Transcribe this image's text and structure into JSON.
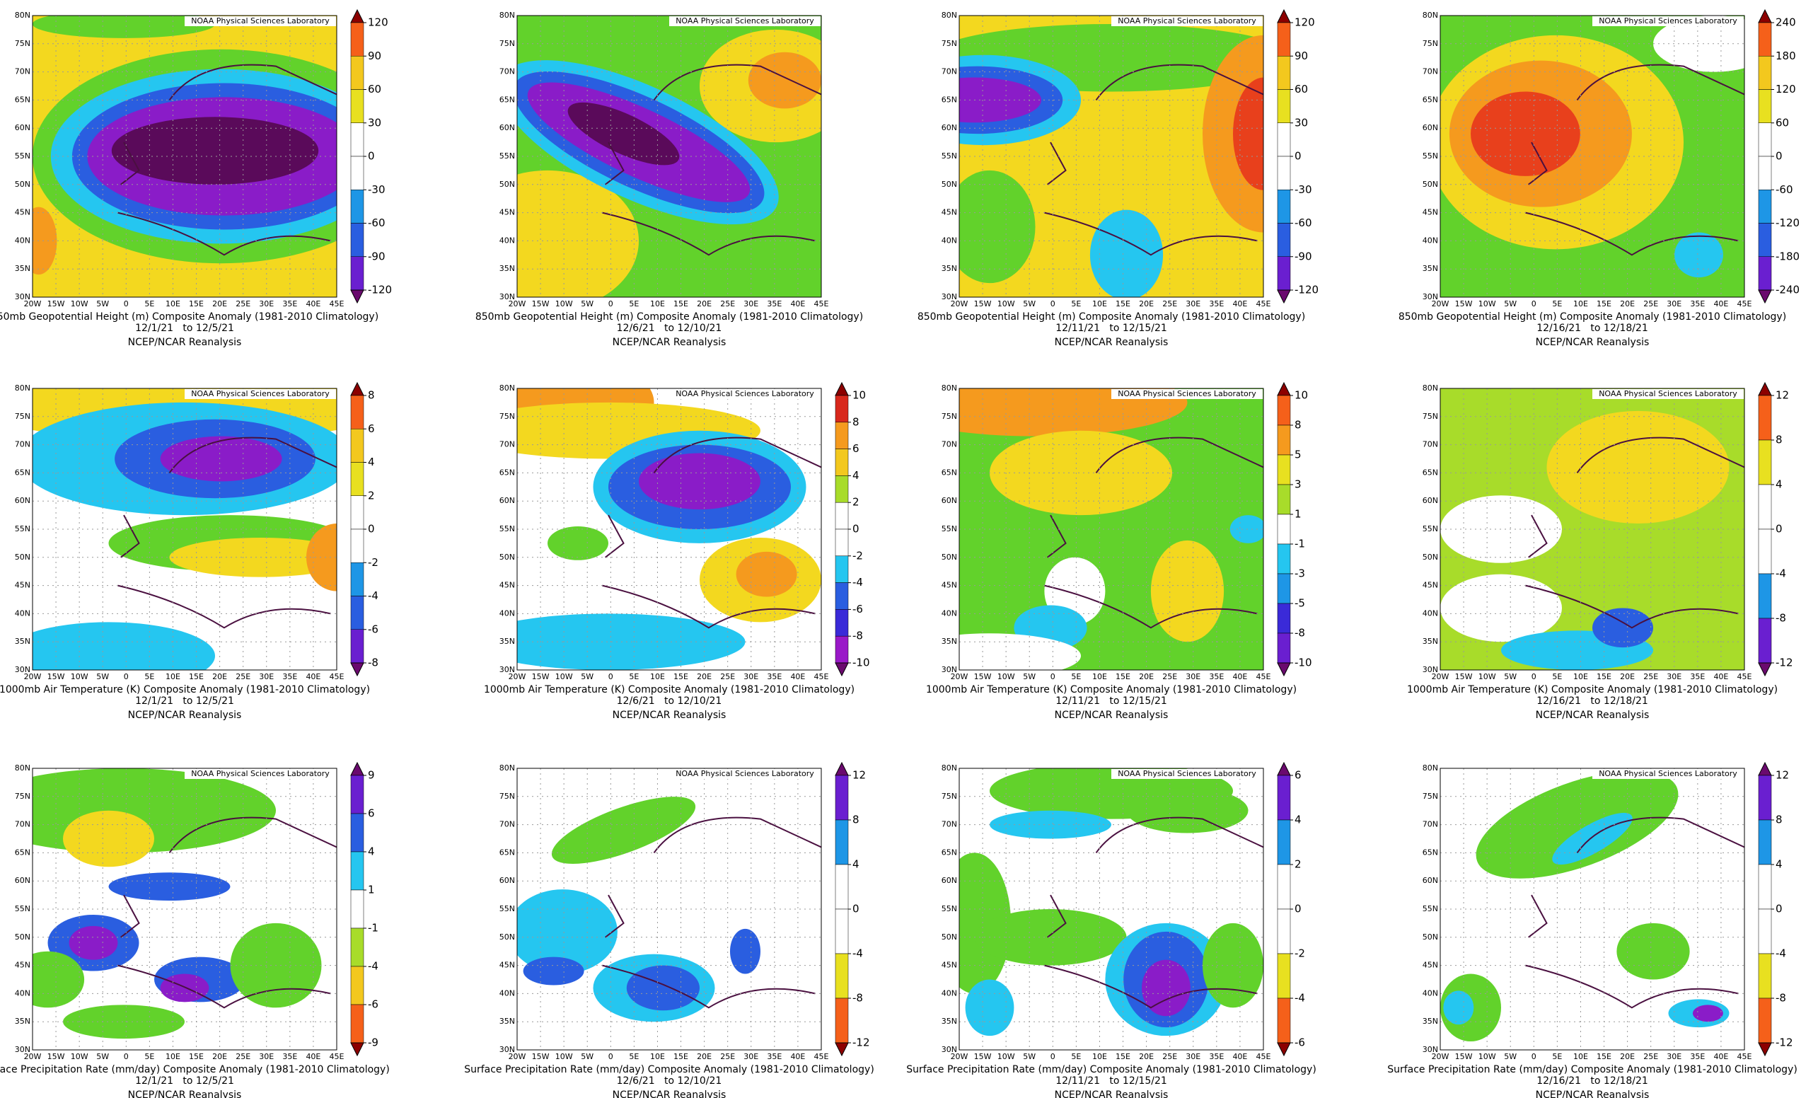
{
  "header_credit": "NOAA Physical Sciences Laboratory",
  "source": "NCEP/NCAR Reanalysis",
  "lon_labels": [
    "20W",
    "15W",
    "10W",
    "5W",
    "0",
    "5E",
    "10E",
    "15E",
    "20E",
    "25E",
    "30E",
    "35E",
    "40E",
    "45E"
  ],
  "lat_labels": [
    "80N",
    "75N",
    "70N",
    "65N",
    "60N",
    "55N",
    "50N",
    "45N",
    "40N",
    "35N",
    "30N"
  ],
  "rows": [
    {
      "caption": "850mb Geopotential Height (m) Composite Anomaly (1981-2010 Climatology)",
      "panels": [
        {
          "dates": "12/1/21   to 12/5/21",
          "colorbar": [
            120,
            90,
            60,
            30,
            0,
            -30,
            -60,
            -90,
            -120
          ]
        },
        {
          "dates": "12/6/21   to 12/10/21"
        },
        {
          "dates": "12/11/21   to 12/15/21",
          "colorbar": [
            120,
            90,
            60,
            30,
            0,
            -30,
            -60,
            -90,
            -120
          ]
        },
        {
          "dates": "12/16/21   to 12/18/21",
          "colorbar": [
            240,
            180,
            120,
            60,
            0,
            -60,
            -120,
            -180,
            -240
          ]
        }
      ]
    },
    {
      "caption": "1000mb Air Temperature (K) Composite Anomaly (1981-2010 Climatology)",
      "panels": [
        {
          "dates": "12/1/21   to 12/5/21",
          "colorbar": [
            8,
            6,
            4,
            2,
            0,
            -2,
            -4,
            -6,
            -8
          ]
        },
        {
          "dates": "12/6/21   to 12/10/21",
          "colorbar": [
            10,
            8,
            6,
            4,
            2,
            0,
            -2,
            -4,
            -6,
            -8,
            -10
          ]
        },
        {
          "dates": "12/11/21   to 12/15/21",
          "colorbar": [
            10,
            8,
            5,
            3,
            1,
            -1,
            -3,
            -5,
            -8,
            -10
          ]
        },
        {
          "dates": "12/16/21   to 12/18/21",
          "colorbar": [
            12,
            8,
            4,
            0,
            -4,
            -8,
            -12
          ]
        }
      ]
    },
    {
      "caption": "Surface Precipitation Rate (mm/day) Composite Anomaly (1981-2010 Climatology)",
      "panels": [
        {
          "dates": "12/1/21   to 12/5/21",
          "colorbar": [
            9,
            6,
            4,
            1,
            -1,
            -4,
            -6,
            -9
          ]
        },
        {
          "dates": "12/6/21   to 12/10/21",
          "colorbar": [
            12,
            8,
            4,
            0,
            -4,
            -8,
            -12
          ]
        },
        {
          "dates": "12/11/21   to 12/15/21",
          "colorbar": [
            6,
            4,
            2,
            0,
            -2,
            -4,
            -6
          ]
        },
        {
          "dates": "12/16/21   to 12/18/21",
          "colorbar": [
            12,
            8,
            4,
            0,
            -4,
            -8,
            -12
          ]
        }
      ]
    }
  ]
}
